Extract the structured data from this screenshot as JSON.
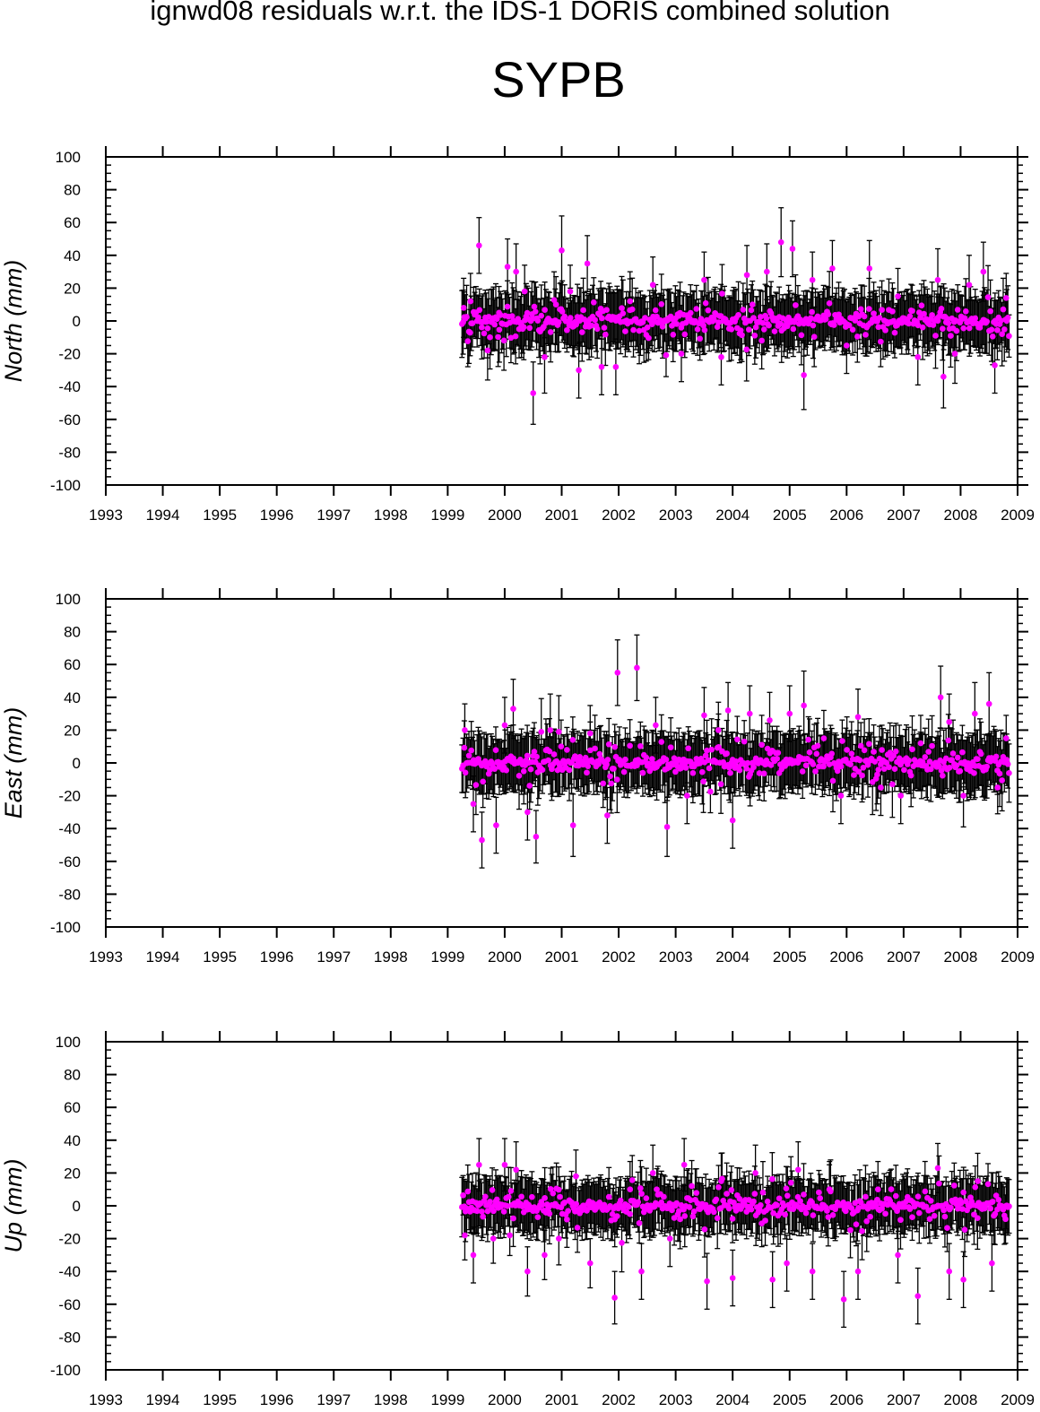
{
  "header": {
    "title": "ignwd08 residuals w.r.t. the IDS-1 DORIS combined solution",
    "station": "SYPB"
  },
  "colors": {
    "point": "#ff00ff",
    "errorbar": "#000000",
    "axis": "#000000"
  },
  "chart_data": [
    {
      "type": "scatter",
      "ylabel": "North (mm)",
      "xlim": [
        1993,
        2009
      ],
      "ylim": [
        -100,
        100
      ],
      "x_ticks": [
        "1993",
        "1994",
        "1995",
        "1996",
        "1997",
        "1998",
        "1999",
        "2000",
        "2001",
        "2002",
        "2003",
        "2004",
        "2005",
        "2006",
        "2007",
        "2008",
        "2009"
      ],
      "y_ticks": [
        "100",
        "80",
        "60",
        "40",
        "20",
        "0",
        "-20",
        "-40",
        "-60",
        "-80",
        "-100"
      ],
      "x_range_of_data": [
        1999.25,
        2008.85
      ],
      "series": [
        {
          "typical_sigma_mm": 17,
          "points": [
            [
              1999.28,
              8,
              18
            ],
            [
              1999.4,
              12,
              17
            ],
            [
              1999.55,
              46,
              17
            ],
            [
              1999.7,
              -18,
              18
            ],
            [
              1999.9,
              5,
              16
            ],
            [
              2000.05,
              33,
              17
            ],
            [
              2000.2,
              30,
              17
            ],
            [
              2000.35,
              18,
              16
            ],
            [
              2000.5,
              -44,
              19
            ],
            [
              2000.7,
              -22,
              22
            ],
            [
              2000.9,
              10,
              17
            ],
            [
              2001.0,
              43,
              21
            ],
            [
              2001.15,
              18,
              16
            ],
            [
              2001.3,
              -30,
              17
            ],
            [
              2001.45,
              35,
              17
            ],
            [
              2001.7,
              -28,
              17
            ],
            [
              2001.95,
              -28,
              17
            ],
            [
              2002.2,
              12,
              18
            ],
            [
              2002.6,
              22,
              17
            ],
            [
              2003.1,
              -20,
              17
            ],
            [
              2003.5,
              25,
              17
            ],
            [
              2003.8,
              -22,
              17
            ],
            [
              2004.25,
              28,
              18
            ],
            [
              2004.6,
              30,
              17
            ],
            [
              2004.85,
              48,
              21
            ],
            [
              2005.05,
              44,
              17
            ],
            [
              2005.25,
              -33,
              21
            ],
            [
              2005.4,
              25,
              17
            ],
            [
              2005.75,
              32,
              17
            ],
            [
              2006.0,
              -15,
              17
            ],
            [
              2006.4,
              32,
              17
            ],
            [
              2006.9,
              15,
              17
            ],
            [
              2007.25,
              -22,
              17
            ],
            [
              2007.6,
              25,
              19
            ],
            [
              2007.7,
              -34,
              19
            ],
            [
              2007.9,
              -20,
              18
            ],
            [
              2008.15,
              22,
              18
            ],
            [
              2008.4,
              30,
              18
            ],
            [
              2008.6,
              -27,
              17
            ],
            [
              2008.8,
              14,
              15
            ]
          ]
        }
      ]
    },
    {
      "type": "scatter",
      "ylabel": "East (mm)",
      "xlim": [
        1993,
        2009
      ],
      "ylim": [
        -100,
        100
      ],
      "x_ticks": [
        "1993",
        "1994",
        "1995",
        "1996",
        "1997",
        "1998",
        "1999",
        "2000",
        "2001",
        "2002",
        "2003",
        "2004",
        "2005",
        "2006",
        "2007",
        "2008",
        "2009"
      ],
      "y_ticks": [
        "100",
        "80",
        "60",
        "40",
        "20",
        "0",
        "-20",
        "-40",
        "-60",
        "-80",
        "-100"
      ],
      "x_range_of_data": [
        1999.25,
        2008.85
      ],
      "series": [
        {
          "typical_sigma_mm": 17,
          "points": [
            [
              1999.3,
              20,
              16
            ],
            [
              1999.45,
              -25,
              17
            ],
            [
              1999.6,
              -47,
              17
            ],
            [
              1999.85,
              -38,
              17
            ],
            [
              2000.0,
              23,
              17
            ],
            [
              2000.15,
              33,
              18
            ],
            [
              2000.4,
              -30,
              17
            ],
            [
              2000.55,
              -45,
              16
            ],
            [
              2000.8,
              20,
              22
            ],
            [
              2000.95,
              19,
              22
            ],
            [
              2001.2,
              -38,
              19
            ],
            [
              2001.5,
              18,
              17
            ],
            [
              2001.8,
              -32,
              17
            ],
            [
              2001.98,
              55,
              20
            ],
            [
              2002.32,
              58,
              20
            ],
            [
              2002.65,
              23,
              17
            ],
            [
              2002.85,
              -39,
              18
            ],
            [
              2003.2,
              -20,
              17
            ],
            [
              2003.5,
              29,
              17
            ],
            [
              2003.75,
              20,
              17
            ],
            [
              2003.92,
              32,
              17
            ],
            [
              2004.0,
              -35,
              17
            ],
            [
              2004.3,
              30,
              17
            ],
            [
              2004.65,
              26,
              17
            ],
            [
              2005.0,
              30,
              17
            ],
            [
              2005.25,
              35,
              21
            ],
            [
              2005.6,
              15,
              17
            ],
            [
              2005.9,
              -20,
              17
            ],
            [
              2006.2,
              28,
              17
            ],
            [
              2006.6,
              -15,
              17
            ],
            [
              2006.95,
              -20,
              17
            ],
            [
              2007.3,
              12,
              17
            ],
            [
              2007.65,
              40,
              19
            ],
            [
              2007.8,
              25,
              17
            ],
            [
              2008.05,
              -20,
              19
            ],
            [
              2008.25,
              30,
              19
            ],
            [
              2008.5,
              36,
              19
            ],
            [
              2008.65,
              -15,
              16
            ],
            [
              2008.8,
              15,
              14
            ]
          ]
        }
      ]
    },
    {
      "type": "scatter",
      "ylabel": "Up (mm)",
      "xlim": [
        1993,
        2009
      ],
      "ylim": [
        -100,
        100
      ],
      "x_ticks": [
        "1993",
        "1994",
        "1995",
        "1996",
        "1997",
        "1998",
        "1999",
        "2000",
        "2001",
        "2002",
        "2003",
        "2004",
        "2005",
        "2006",
        "2007",
        "2008",
        "2009"
      ],
      "y_ticks": [
        "100",
        "80",
        "60",
        "40",
        "20",
        "0",
        "-20",
        "-40",
        "-60",
        "-80",
        "-100"
      ],
      "x_range_of_data": [
        1999.25,
        2008.85
      ],
      "series": [
        {
          "typical_sigma_mm": 16,
          "points": [
            [
              1999.3,
              -18,
              15
            ],
            [
              1999.45,
              -30,
              17
            ],
            [
              1999.55,
              25,
              16
            ],
            [
              1999.8,
              -20,
              15
            ],
            [
              2000.0,
              25,
              16
            ],
            [
              2000.2,
              22,
              17
            ],
            [
              2000.4,
              -40,
              15
            ],
            [
              2000.7,
              -30,
              15
            ],
            [
              2000.95,
              -20,
              16
            ],
            [
              2001.25,
              18,
              16
            ],
            [
              2001.5,
              -35,
              15
            ],
            [
              2001.93,
              -56,
              16
            ],
            [
              2002.2,
              10,
              17
            ],
            [
              2002.4,
              -40,
              17
            ],
            [
              2002.6,
              20,
              17
            ],
            [
              2002.9,
              -20,
              17
            ],
            [
              2003.15,
              25,
              16
            ],
            [
              2003.55,
              -46,
              17
            ],
            [
              2003.8,
              15,
              17
            ],
            [
              2004.0,
              -44,
              17
            ],
            [
              2004.4,
              20,
              17
            ],
            [
              2004.7,
              -45,
              17
            ],
            [
              2004.95,
              -35,
              17
            ],
            [
              2005.15,
              22,
              17
            ],
            [
              2005.4,
              -40,
              17
            ],
            [
              2005.7,
              10,
              17
            ],
            [
              2005.95,
              -57,
              17
            ],
            [
              2006.2,
              -40,
              17
            ],
            [
              2006.55,
              10,
              17
            ],
            [
              2006.9,
              -30,
              17
            ],
            [
              2007.25,
              -55,
              17
            ],
            [
              2007.6,
              23,
              15
            ],
            [
              2007.8,
              -40,
              17
            ],
            [
              2008.05,
              -45,
              17
            ],
            [
              2008.3,
              15,
              17
            ],
            [
              2008.55,
              -35,
              17
            ],
            [
              2008.8,
              0,
              14
            ]
          ]
        }
      ]
    }
  ]
}
